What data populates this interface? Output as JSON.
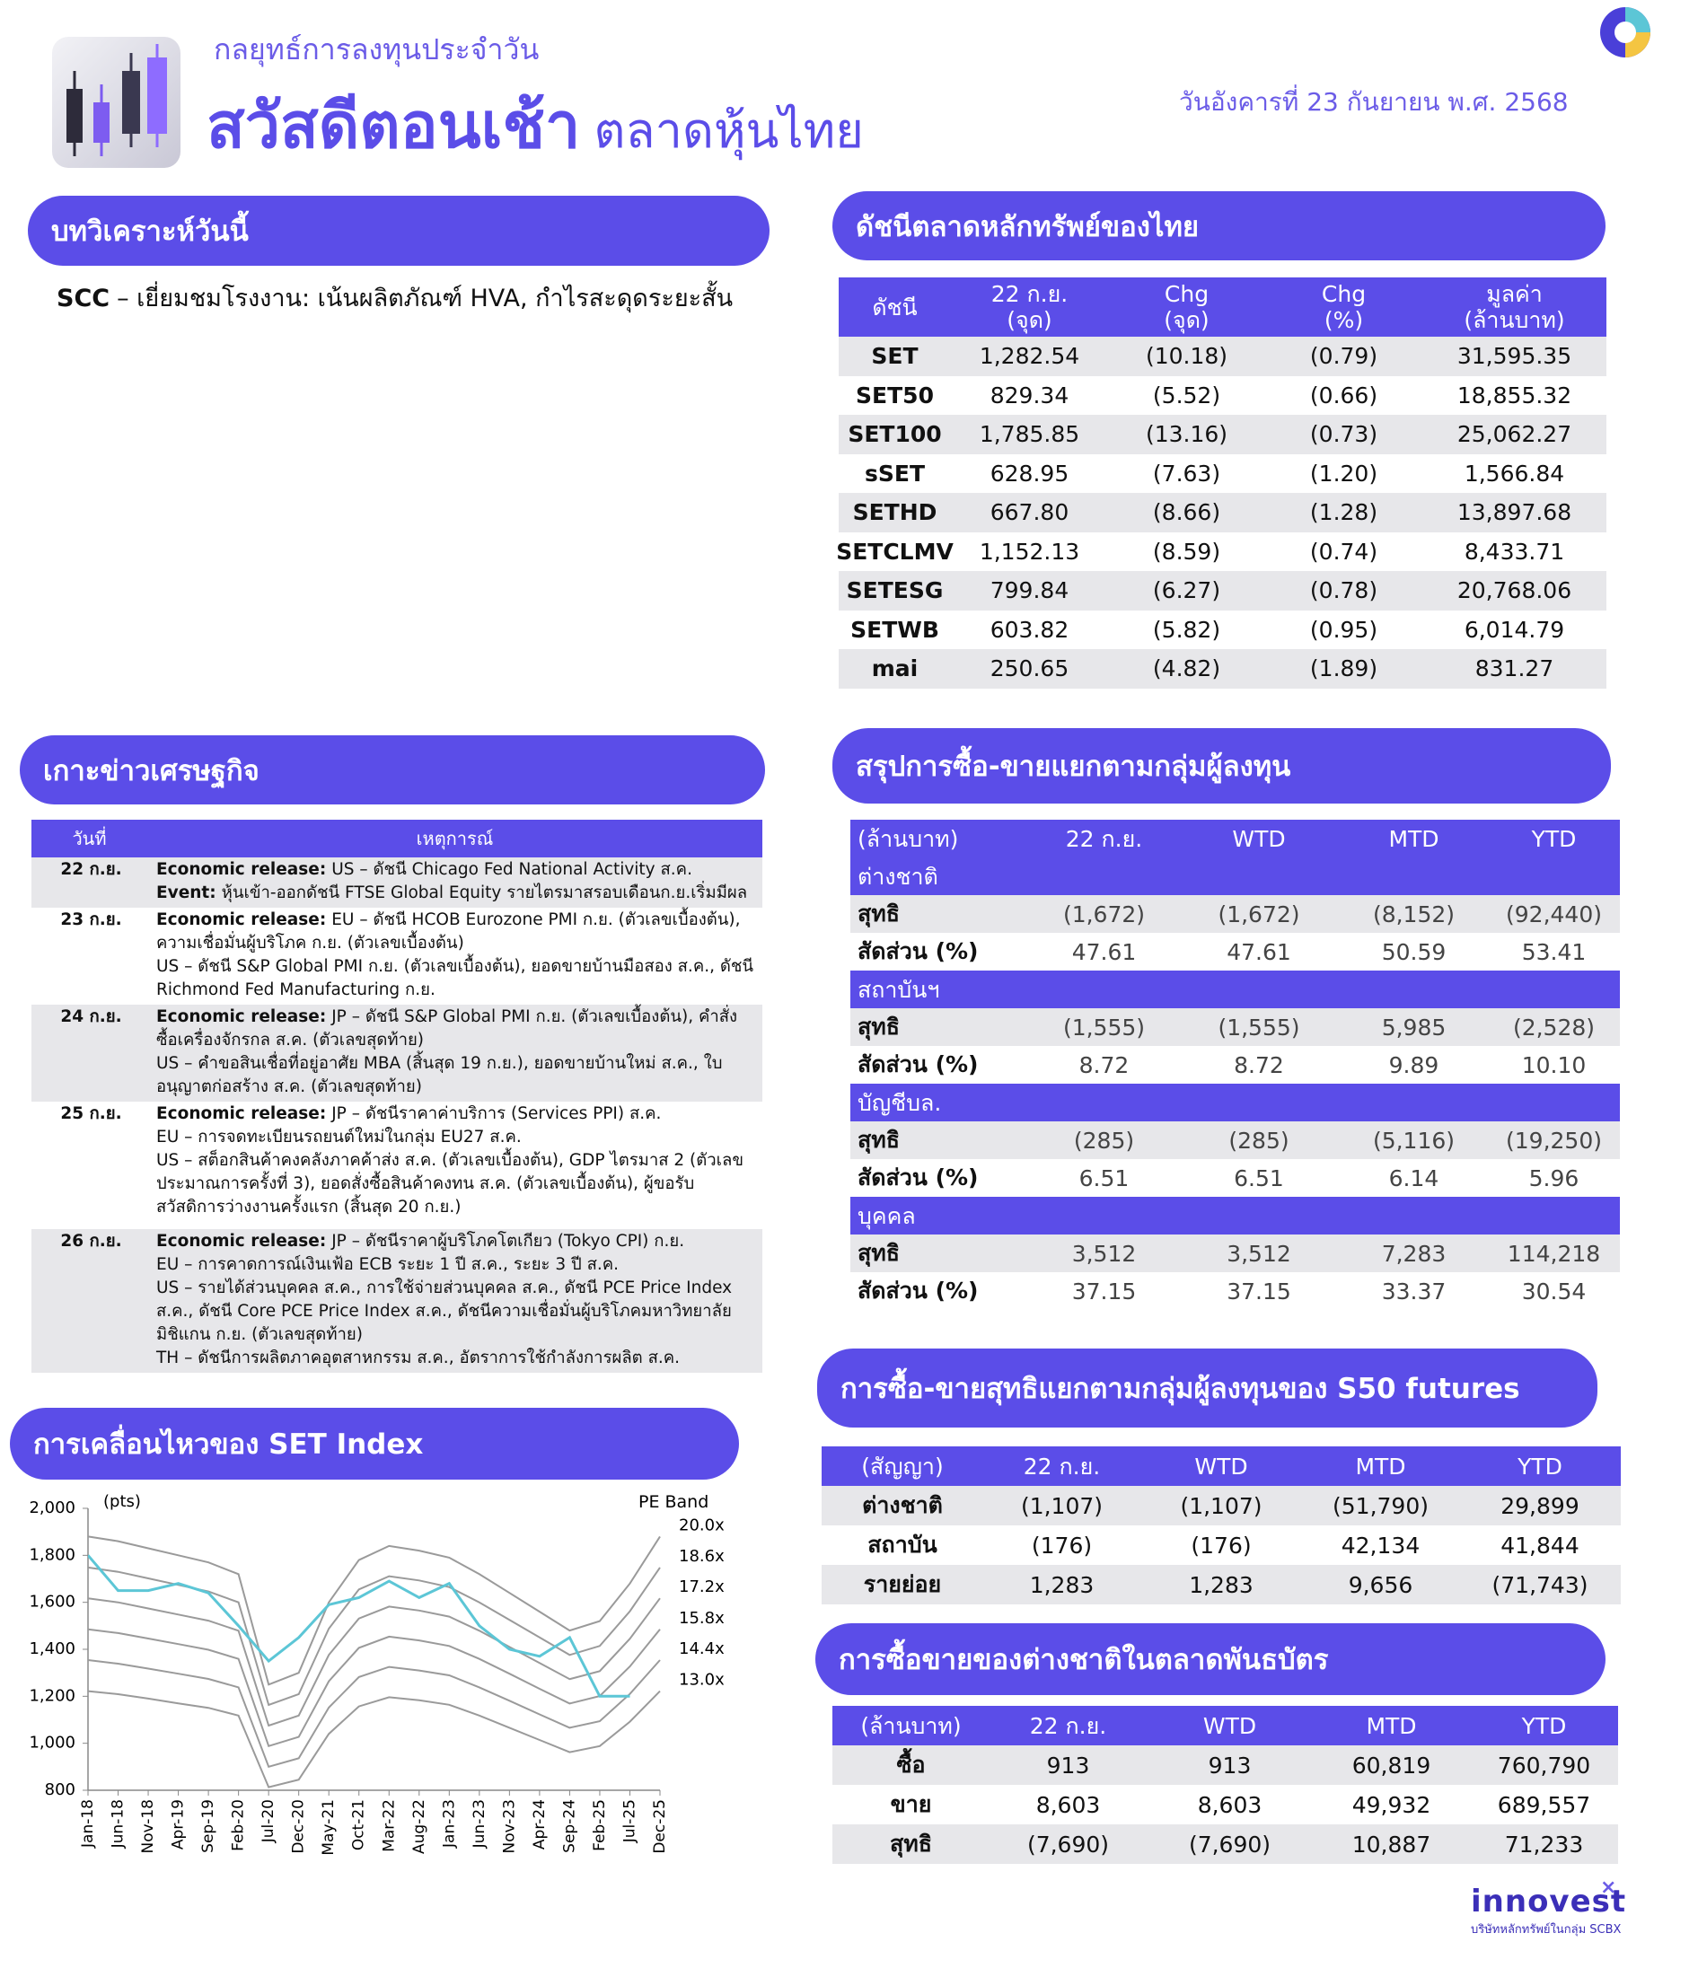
{
  "header": {
    "subtitle": "กลยุทธ์การลงทุนประจำวัน",
    "title": "สวัสดีตอนเช้า",
    "title_suffix": "ตลาดหุ้นไทย",
    "date": "วันอังคารที่ 23 กันยายน พ.ศ. 2568"
  },
  "analysis": {
    "heading": "บทวิเคราะห์วันนี้",
    "items": [
      {
        "label": "SCC",
        "text": "– เยี่ยมชมโรงงาน: เน้นผลิตภัณฑ์ HVA, กำไรสะดุดระยะสั้น"
      }
    ]
  },
  "index_table": {
    "heading": "ดัชนีตลาดหลักทรัพย์ของไทย",
    "columns": [
      [
        "ดัชนี"
      ],
      [
        "22 ก.ย.",
        "(จุด)"
      ],
      [
        "Chg",
        "(จุด)"
      ],
      [
        "Chg",
        "(%)"
      ],
      [
        "มูลค่า",
        "(ล้านบาท)"
      ]
    ],
    "rows": [
      [
        "SET",
        "1,282.54",
        "(10.18)",
        "(0.79)",
        "31,595.35"
      ],
      [
        "SET50",
        "829.34",
        "(5.52)",
        "(0.66)",
        "18,855.32"
      ],
      [
        "SET100",
        "1,785.85",
        "(13.16)",
        "(0.73)",
        "25,062.27"
      ],
      [
        "sSET",
        "628.95",
        "(7.63)",
        "(1.20)",
        "1,566.84"
      ],
      [
        "SETHD",
        "667.80",
        "(8.66)",
        "(1.28)",
        "13,897.68"
      ],
      [
        "SETCLMV",
        "1,152.13",
        "(8.59)",
        "(0.74)",
        "8,433.71"
      ],
      [
        "SETESG",
        "799.84",
        "(6.27)",
        "(0.78)",
        "20,768.06"
      ],
      [
        "SETWB",
        "603.82",
        "(5.82)",
        "(0.95)",
        "6,014.79"
      ],
      [
        "mai",
        "250.65",
        "(4.82)",
        "(1.89)",
        "831.27"
      ]
    ]
  },
  "news": {
    "heading": "เกาะข่าวเศรษฐกิจ",
    "columns": [
      "วันที่",
      "เหตุการณ์"
    ],
    "rows": [
      {
        "date": "22 ก.ย.",
        "items": [
          {
            "label": "Economic release:",
            "text": "US – ดัชนี Chicago Fed National Activity ส.ค."
          },
          {
            "label": "Event:",
            "text": "หุ้นเข้า-ออกดัชนี FTSE Global Equity รายไตรมาสรอบเดือนก.ย.เริ่มมีผล"
          }
        ]
      },
      {
        "date": "23 ก.ย.",
        "items": [
          {
            "label": "Economic release:",
            "text": "EU – ดัชนี HCOB Eurozone PMI ก.ย. (ตัวเลขเบื้องต้น), ความเชื่อมั่นผู้บริโภค ก.ย. (ตัวเลขเบื้องต้น)"
          },
          {
            "text": "US – ดัชนี S&P Global PMI ก.ย. (ตัวเลขเบื้องต้น), ยอดขายบ้านมือสอง ส.ค., ดัชนี Richmond Fed Manufacturing ก.ย."
          }
        ]
      },
      {
        "date": "24 ก.ย.",
        "items": [
          {
            "label": "Economic release:",
            "text": "JP – ดัชนี S&P Global PMI ก.ย. (ตัวเลขเบื้องต้น), คำสั่งซื้อเครื่องจักรกล ส.ค. (ตัวเลขสุดท้าย)"
          },
          {
            "text": "US – คำขอสินเชื่อที่อยู่อาศัย MBA (สิ้นสุด 19 ก.ย.), ยอดขายบ้านใหม่ ส.ค., ใบอนุญาตก่อสร้าง ส.ค. (ตัวเลขสุดท้าย)"
          }
        ]
      },
      {
        "date": "25 ก.ย.",
        "items": [
          {
            "label": "Economic release:",
            "text": "JP – ดัชนีราคาค่าบริการ (Services PPI) ส.ค."
          },
          {
            "text": "EU – การจดทะเบียนรถยนต์ใหม่ในกลุ่ม EU27 ส.ค."
          },
          {
            "text": "US – สต็อกสินค้าคงคลังภาคค้าส่ง ส.ค. (ตัวเลขเบื้องต้น), GDP ไตรมาส 2 (ตัวเลขประมาณการครั้งที่ 3), ยอดสั่งซื้อสินค้าคงทน ส.ค. (ตัวเลขเบื้องต้น), ผู้ขอรับสวัสดิการว่างงานครั้งแรก (สิ้นสุด 20 ก.ย.)"
          }
        ]
      },
      {
        "date": "26 ก.ย.",
        "items": [
          {
            "label": "Economic release:",
            "text": "JP – ดัชนีราคาผู้บริโภคโตเกียว (Tokyo CPI) ก.ย."
          },
          {
            "text": "EU – การคาดการณ์เงินเฟ้อ ECB ระยะ 1 ปี ส.ค., ระยะ 3 ปี ส.ค."
          },
          {
            "text": "US – รายได้ส่วนบุคคล ส.ค., การใช้จ่ายส่วนบุคคล ส.ค., ดัชนี PCE Price Index ส.ค., ดัชนี Core PCE Price Index ส.ค., ดัชนีความเชื่อมั่นผู้บริโภคมหาวิทยาลัยมิชิแกน ก.ย. (ตัวเลขสุดท้าย)"
          },
          {
            "text": "TH – ดัชนีการผลิตภาคอุตสาหกรรม ส.ค., อัตราการใช้กำลังการผลิต ส.ค."
          }
        ]
      }
    ]
  },
  "chart_data": {
    "type": "line",
    "title": "การเคลื่อนไหวของ SET Index",
    "y_label": "(pts)",
    "legend_title": "PE Band",
    "categories": [
      "Jan-18",
      "Jun-18",
      "Nov-18",
      "Apr-19",
      "Sep-19",
      "Feb-20",
      "Jul-20",
      "Dec-20",
      "May-21",
      "Oct-21",
      "Mar-22",
      "Aug-22",
      "Jan-23",
      "Jun-23",
      "Nov-23",
      "Apr-24",
      "Sep-24",
      "Feb-25",
      "Jul-25",
      "Dec-25"
    ],
    "ylim": [
      800,
      2000
    ],
    "yticks": [
      800,
      {
        "value": 1000,
        "label": "1,000"
      },
      {
        "value": 1200,
        "label": "1,200"
      },
      {
        "value": 1400,
        "label": "1,400"
      },
      {
        "value": 1600,
        "label": "1,600"
      },
      {
        "value": 1800,
        "label": "1,800"
      },
      {
        "value": 2000,
        "label": "2,000"
      }
    ],
    "series": [
      {
        "name": "20.0x",
        "color": "#9a9a9a",
        "values": [
          1880,
          1860,
          1830,
          1800,
          1770,
          1720,
          1250,
          1300,
          1600,
          1780,
          1840,
          1820,
          1790,
          1720,
          1640,
          1560,
          1480,
          1520,
          1680,
          1880
        ]
      },
      {
        "name": "18.6x",
        "color": "#9a9a9a",
        "values": [
          1748,
          1730,
          1702,
          1674,
          1646,
          1600,
          1163,
          1209,
          1488,
          1655,
          1711,
          1693,
          1665,
          1600,
          1525,
          1451,
          1376,
          1414,
          1562,
          1748
        ]
      },
      {
        "name": "17.2x",
        "color": "#9a9a9a",
        "values": [
          1617,
          1600,
          1574,
          1548,
          1522,
          1479,
          1075,
          1118,
          1376,
          1531,
          1582,
          1565,
          1539,
          1479,
          1410,
          1342,
          1273,
          1307,
          1445,
          1617
        ]
      },
      {
        "name": "15.8x",
        "color": "#9a9a9a",
        "values": [
          1485,
          1469,
          1446,
          1422,
          1398,
          1359,
          988,
          1027,
          1264,
          1406,
          1454,
          1438,
          1414,
          1359,
          1296,
          1232,
          1169,
          1201,
          1327,
          1485
        ]
      },
      {
        "name": "14.4x",
        "color": "#9a9a9a",
        "values": [
          1354,
          1339,
          1318,
          1296,
          1274,
          1238,
          900,
          936,
          1152,
          1282,
          1325,
          1310,
          1289,
          1238,
          1181,
          1123,
          1066,
          1094,
          1210,
          1354
        ]
      },
      {
        "name": "13.0x",
        "color": "#9a9a9a",
        "values": [
          1222,
          1209,
          1190,
          1170,
          1151,
          1118,
          813,
          845,
          1040,
          1157,
          1196,
          1183,
          1164,
          1118,
          1066,
          1014,
          962,
          988,
          1092,
          1222
        ]
      },
      {
        "color": "#5cc6d6",
        "values": [
          1800,
          1650,
          1650,
          1680,
          1640,
          1500,
          1350,
          1450,
          1590,
          1620,
          1690,
          1620,
          1680,
          1500,
          1400,
          1370,
          1450,
          1200,
          1200,
          null
        ]
      }
    ]
  },
  "investor_table": {
    "heading": "สรุปการซื้อ-ขายแยกตามกลุ่มผู้ลงทุน",
    "columns": [
      "(ล้านบาท)",
      "22 ก.ย.",
      "WTD",
      "MTD",
      "YTD"
    ],
    "groups": [
      {
        "name": "ต่างชาติ",
        "rows": [
          [
            "สุทธิ",
            "(1,672)",
            "(1,672)",
            "(8,152)",
            "(92,440)"
          ],
          [
            "สัดส่วน (%)",
            "47.61",
            "47.61",
            "50.59",
            "53.41"
          ]
        ]
      },
      {
        "name": "สถาบันฯ",
        "rows": [
          [
            "สุทธิ",
            "(1,555)",
            "(1,555)",
            "5,985",
            "(2,528)"
          ],
          [
            "สัดส่วน (%)",
            "8.72",
            "8.72",
            "9.89",
            "10.10"
          ]
        ]
      },
      {
        "name": "บัญชีบล.",
        "rows": [
          [
            "สุทธิ",
            "(285)",
            "(285)",
            "(5,116)",
            "(19,250)"
          ],
          [
            "สัดส่วน (%)",
            "6.51",
            "6.51",
            "6.14",
            "5.96"
          ]
        ]
      },
      {
        "name": "บุคคล",
        "rows": [
          [
            "สุทธิ",
            "3,512",
            "3,512",
            "7,283",
            "114,218"
          ],
          [
            "สัดส่วน (%)",
            "37.15",
            "37.15",
            "33.37",
            "30.54"
          ]
        ]
      }
    ]
  },
  "futures_table": {
    "heading": "การซื้อ-ขายสุทธิแยกตามกลุ่มผู้ลงทุนของ S50 futures",
    "columns": [
      "(สัญญา)",
      "22 ก.ย.",
      "WTD",
      "MTD",
      "YTD"
    ],
    "rows": [
      [
        "ต่างชาติ",
        "(1,107)",
        "(1,107)",
        "(51,790)",
        "29,899"
      ],
      [
        "สถาบัน",
        "(176)",
        "(176)",
        "42,134",
        "41,844"
      ],
      [
        "รายย่อย",
        "1,283",
        "1,283",
        "9,656",
        "(71,743)"
      ]
    ]
  },
  "bond_table": {
    "heading": "การซื้อขายของต่างชาติในตลาดพันธบัตร",
    "columns": [
      "(ล้านบาท)",
      "22 ก.ย.",
      "WTD",
      "MTD",
      "YTD"
    ],
    "rows": [
      [
        "ซื้อ",
        "913",
        "913",
        "60,819",
        "760,790"
      ],
      [
        "ขาย",
        "8,603",
        "8,603",
        "49,932",
        "689,557"
      ],
      [
        "สุทธิ",
        "(7,690)",
        "(7,690)",
        "10,887",
        "71,233"
      ]
    ]
  },
  "footer": {
    "brand": "innovest",
    "tagline": "บริษัทหลักทรัพย์ในกลุ่ม SCBX"
  }
}
